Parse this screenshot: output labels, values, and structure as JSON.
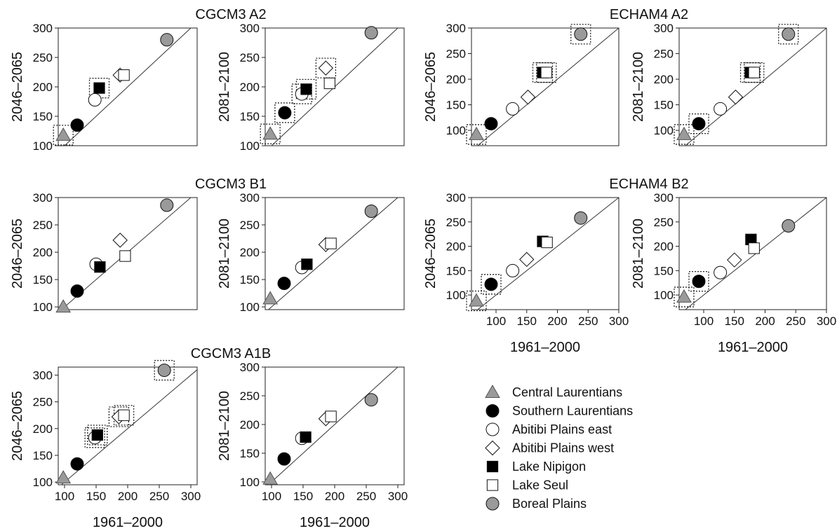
{
  "colors": {
    "Central Laurentians": "#9a9a9a",
    "Southern Laurentians": "#000000",
    "Abitibi Plains east": "#ffffff",
    "Abitibi Plains west": "#ffffff",
    "Lake Nipigon": "#000000",
    "Lake Seul": "#ffffff",
    "Boreal Plains": "#9a9a9a"
  },
  "legend": [
    {
      "name": "Central Laurentians",
      "marker": "triangle-filled-gray"
    },
    {
      "name": "Southern Laurentians",
      "marker": "circle-filled-black"
    },
    {
      "name": "Abitibi Plains east",
      "marker": "circle-open"
    },
    {
      "name": "Abitibi Plains west",
      "marker": "diamond-open"
    },
    {
      "name": "Lake Nipigon",
      "marker": "square-filled-black"
    },
    {
      "name": "Lake Seul",
      "marker": "square-open"
    },
    {
      "name": "Boreal Plains",
      "marker": "circle-filled-gray"
    }
  ],
  "chart_data": [
    {
      "type": "scatter",
      "group_title": "CGCM3 A2",
      "ylabel": "2046–2065",
      "xlabel": "",
      "xlim": [
        90,
        310
      ],
      "ylim": [
        100,
        300
      ],
      "yticks": [
        100,
        150,
        200,
        250,
        300
      ],
      "xticks": [],
      "reference_line": "1:1",
      "grid": false,
      "points": [
        {
          "series": "Central Laurentians",
          "x": 98,
          "y": 118,
          "boxed": true
        },
        {
          "series": "Southern Laurentians",
          "x": 120,
          "y": 135,
          "boxed": false
        },
        {
          "series": "Abitibi Plains east",
          "x": 148,
          "y": 178,
          "boxed": false
        },
        {
          "series": "Abitibi Plains west",
          "x": 188,
          "y": 220,
          "boxed": false
        },
        {
          "series": "Lake Nipigon",
          "x": 155,
          "y": 198,
          "boxed": true
        },
        {
          "series": "Lake Seul",
          "x": 194,
          "y": 220,
          "boxed": false
        },
        {
          "series": "Boreal Plains",
          "x": 262,
          "y": 280,
          "boxed": false
        }
      ]
    },
    {
      "type": "scatter",
      "group_title": "",
      "ylabel": "2081–2100",
      "xlabel": "",
      "xlim": [
        90,
        310
      ],
      "ylim": [
        100,
        300
      ],
      "yticks": [
        100,
        150,
        200,
        250,
        300
      ],
      "xticks": [],
      "reference_line": "1:1",
      "grid": false,
      "points": [
        {
          "series": "Central Laurentians",
          "x": 98,
          "y": 120,
          "boxed": true
        },
        {
          "series": "Southern Laurentians",
          "x": 121,
          "y": 156,
          "boxed": true
        },
        {
          "series": "Abitibi Plains east",
          "x": 148,
          "y": 188,
          "boxed": true
        },
        {
          "series": "Abitibi Plains west",
          "x": 186,
          "y": 232,
          "boxed": true
        },
        {
          "series": "Lake Nipigon",
          "x": 155,
          "y": 196,
          "boxed": true
        },
        {
          "series": "Lake Seul",
          "x": 192,
          "y": 206,
          "boxed": false
        },
        {
          "series": "Boreal Plains",
          "x": 258,
          "y": 292,
          "boxed": false
        }
      ]
    },
    {
      "type": "scatter",
      "group_title": "CGCM3 B1",
      "ylabel": "2046–2065",
      "xlabel": "",
      "xlim": [
        90,
        310
      ],
      "ylim": [
        95,
        300
      ],
      "yticks": [
        100,
        150,
        200,
        250,
        300
      ],
      "xticks": [],
      "reference_line": "1:1",
      "grid": false,
      "points": [
        {
          "series": "Central Laurentians",
          "x": 98,
          "y": 100,
          "boxed": false
        },
        {
          "series": "Southern Laurentians",
          "x": 120,
          "y": 129,
          "boxed": false
        },
        {
          "series": "Abitibi Plains east",
          "x": 150,
          "y": 178,
          "boxed": false
        },
        {
          "series": "Abitibi Plains west",
          "x": 188,
          "y": 222,
          "boxed": false
        },
        {
          "series": "Lake Nipigon",
          "x": 156,
          "y": 173,
          "boxed": false
        },
        {
          "series": "Lake Seul",
          "x": 196,
          "y": 193,
          "boxed": false
        },
        {
          "series": "Boreal Plains",
          "x": 262,
          "y": 286,
          "boxed": false
        }
      ]
    },
    {
      "type": "scatter",
      "group_title": "",
      "ylabel": "2081–2100",
      "xlabel": "",
      "xlim": [
        90,
        310
      ],
      "ylim": [
        95,
        300
      ],
      "yticks": [
        100,
        150,
        200,
        250,
        300
      ],
      "xticks": [],
      "reference_line": "1:1",
      "grid": false,
      "points": [
        {
          "series": "Central Laurentians",
          "x": 98,
          "y": 115,
          "boxed": false
        },
        {
          "series": "Southern Laurentians",
          "x": 120,
          "y": 143,
          "boxed": false
        },
        {
          "series": "Abitibi Plains east",
          "x": 148,
          "y": 172,
          "boxed": false
        },
        {
          "series": "Abitibi Plains west",
          "x": 186,
          "y": 214,
          "boxed": false
        },
        {
          "series": "Lake Nipigon",
          "x": 156,
          "y": 178,
          "boxed": false
        },
        {
          "series": "Lake Seul",
          "x": 194,
          "y": 216,
          "boxed": false
        },
        {
          "series": "Boreal Plains",
          "x": 258,
          "y": 275,
          "boxed": false
        }
      ]
    },
    {
      "type": "scatter",
      "group_title": "CGCM3 A1B",
      "ylabel": "2046–2065",
      "xlabel": "1961–2000",
      "xlim": [
        90,
        310
      ],
      "ylim": [
        95,
        315
      ],
      "yticks": [
        100,
        150,
        200,
        250,
        300
      ],
      "xticks": [
        100,
        150,
        200,
        250,
        300
      ],
      "reference_line": "1:1",
      "grid": false,
      "points": [
        {
          "series": "Central Laurentians",
          "x": 98,
          "y": 108,
          "boxed": false
        },
        {
          "series": "Southern Laurentians",
          "x": 120,
          "y": 134,
          "boxed": false
        },
        {
          "series": "Abitibi Plains east",
          "x": 148,
          "y": 183,
          "boxed": true
        },
        {
          "series": "Abitibi Plains west",
          "x": 186,
          "y": 222,
          "boxed": true
        },
        {
          "series": "Lake Nipigon",
          "x": 152,
          "y": 188,
          "boxed": true
        },
        {
          "series": "Lake Seul",
          "x": 194,
          "y": 225,
          "boxed": true
        },
        {
          "series": "Boreal Plains",
          "x": 258,
          "y": 309,
          "boxed": true
        }
      ]
    },
    {
      "type": "scatter",
      "group_title": "",
      "ylabel": "2081–2100",
      "xlabel": "1961–2000",
      "xlim": [
        90,
        310
      ],
      "ylim": [
        95,
        300
      ],
      "yticks": [
        100,
        150,
        200,
        250,
        300
      ],
      "xticks": [
        100,
        150,
        200,
        250,
        300
      ],
      "reference_line": "1:1",
      "grid": false,
      "points": [
        {
          "series": "Central Laurentians",
          "x": 98,
          "y": 105,
          "boxed": false
        },
        {
          "series": "Southern Laurentians",
          "x": 120,
          "y": 140,
          "boxed": false
        },
        {
          "series": "Abitibi Plains east",
          "x": 148,
          "y": 176,
          "boxed": false
        },
        {
          "series": "Abitibi Plains west",
          "x": 186,
          "y": 210,
          "boxed": false
        },
        {
          "series": "Lake Nipigon",
          "x": 154,
          "y": 178,
          "boxed": false
        },
        {
          "series": "Lake Seul",
          "x": 194,
          "y": 214,
          "boxed": false
        },
        {
          "series": "Boreal Plains",
          "x": 258,
          "y": 243,
          "boxed": false
        }
      ]
    },
    {
      "type": "scatter",
      "group_title": "ECHAM4 A2",
      "ylabel": "2046–2065",
      "xlabel": "",
      "xlim": [
        60,
        300
      ],
      "ylim": [
        70,
        300
      ],
      "yticks": [
        100,
        150,
        200,
        250,
        300
      ],
      "xticks": [],
      "reference_line": "1:1",
      "grid": false,
      "points": [
        {
          "series": "Central Laurentians",
          "x": 68,
          "y": 92,
          "boxed": true
        },
        {
          "series": "Southern Laurentians",
          "x": 92,
          "y": 113,
          "boxed": false
        },
        {
          "series": "Abitibi Plains east",
          "x": 127,
          "y": 142,
          "boxed": false
        },
        {
          "series": "Abitibi Plains west",
          "x": 152,
          "y": 165,
          "boxed": false
        },
        {
          "series": "Lake Nipigon",
          "x": 176,
          "y": 213,
          "boxed": true
        },
        {
          "series": "Lake Seul",
          "x": 182,
          "y": 213,
          "boxed": true
        },
        {
          "series": "Boreal Plains",
          "x": 238,
          "y": 288,
          "boxed": true
        }
      ]
    },
    {
      "type": "scatter",
      "group_title": "",
      "ylabel": "2081–2100",
      "xlabel": "",
      "xlim": [
        60,
        300
      ],
      "ylim": [
        70,
        300
      ],
      "yticks": [
        100,
        150,
        200,
        250,
        300
      ],
      "xticks": [],
      "reference_line": "1:1",
      "grid": false,
      "points": [
        {
          "series": "Central Laurentians",
          "x": 68,
          "y": 92,
          "boxed": true
        },
        {
          "series": "Southern Laurentians",
          "x": 92,
          "y": 113,
          "boxed": true
        },
        {
          "series": "Abitibi Plains east",
          "x": 127,
          "y": 142,
          "boxed": false
        },
        {
          "series": "Abitibi Plains west",
          "x": 152,
          "y": 165,
          "boxed": false
        },
        {
          "series": "Lake Nipigon",
          "x": 176,
          "y": 213,
          "boxed": true
        },
        {
          "series": "Lake Seul",
          "x": 182,
          "y": 213,
          "boxed": true
        },
        {
          "series": "Boreal Plains",
          "x": 238,
          "y": 288,
          "boxed": true
        }
      ]
    },
    {
      "type": "scatter",
      "group_title": "ECHAM4 B2",
      "ylabel": "2046–2065",
      "xlabel": "1961–2000",
      "xlim": [
        60,
        300
      ],
      "ylim": [
        70,
        300
      ],
      "yticks": [
        100,
        150,
        200,
        250,
        300
      ],
      "xticks": [
        100,
        150,
        200,
        250,
        300
      ],
      "reference_line": "1:1",
      "grid": false,
      "points": [
        {
          "series": "Central Laurentians",
          "x": 68,
          "y": 88,
          "boxed": true
        },
        {
          "series": "Southern Laurentians",
          "x": 92,
          "y": 122,
          "boxed": true
        },
        {
          "series": "Abitibi Plains east",
          "x": 127,
          "y": 150,
          "boxed": false
        },
        {
          "series": "Abitibi Plains west",
          "x": 150,
          "y": 173,
          "boxed": false
        },
        {
          "series": "Lake Nipigon",
          "x": 176,
          "y": 210,
          "boxed": false
        },
        {
          "series": "Lake Seul",
          "x": 183,
          "y": 208,
          "boxed": false
        },
        {
          "series": "Boreal Plains",
          "x": 238,
          "y": 258,
          "boxed": false
        }
      ]
    },
    {
      "type": "scatter",
      "group_title": "",
      "ylabel": "2081–2100",
      "xlabel": "1961–2000",
      "xlim": [
        60,
        300
      ],
      "ylim": [
        70,
        300
      ],
      "yticks": [
        100,
        150,
        200,
        250,
        300
      ],
      "xticks": [
        100,
        150,
        200,
        250,
        300
      ],
      "reference_line": "1:1",
      "grid": false,
      "points": [
        {
          "series": "Central Laurentians",
          "x": 68,
          "y": 96,
          "boxed": true
        },
        {
          "series": "Southern Laurentians",
          "x": 92,
          "y": 128,
          "boxed": true
        },
        {
          "series": "Abitibi Plains east",
          "x": 127,
          "y": 146,
          "boxed": false
        },
        {
          "series": "Abitibi Plains west",
          "x": 150,
          "y": 172,
          "boxed": false
        },
        {
          "series": "Lake Nipigon",
          "x": 177,
          "y": 214,
          "boxed": false
        },
        {
          "series": "Lake Seul",
          "x": 182,
          "y": 196,
          "boxed": false
        },
        {
          "series": "Boreal Plains",
          "x": 238,
          "y": 242,
          "boxed": false
        }
      ]
    }
  ]
}
